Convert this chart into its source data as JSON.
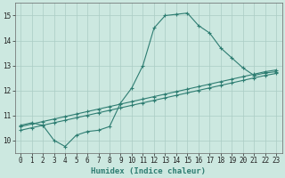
{
  "line1_x": [
    0,
    1,
    2,
    3,
    4,
    5,
    6,
    7,
    8,
    9,
    10,
    11,
    12,
    13,
    14,
    15,
    16,
    17,
    18,
    19,
    20,
    21,
    22,
    23
  ],
  "line1_y": [
    10.6,
    10.7,
    10.6,
    10.0,
    9.75,
    10.2,
    10.35,
    10.4,
    10.55,
    11.5,
    12.1,
    13.0,
    14.5,
    15.0,
    15.05,
    15.1,
    14.6,
    14.3,
    13.7,
    13.3,
    12.9,
    12.6,
    12.7,
    12.75
  ],
  "line2_x": [
    0,
    1,
    2,
    3,
    4,
    5,
    6,
    7,
    8,
    9,
    10,
    11,
    12,
    13,
    14,
    15,
    16,
    17,
    18,
    19,
    20,
    21,
    22,
    23
  ],
  "line2_y": [
    10.55,
    10.65,
    10.75,
    10.85,
    10.95,
    11.05,
    11.15,
    11.25,
    11.35,
    11.45,
    11.55,
    11.65,
    11.75,
    11.85,
    11.95,
    12.05,
    12.15,
    12.25,
    12.35,
    12.45,
    12.55,
    12.65,
    12.75,
    12.82
  ],
  "line3_x": [
    0,
    1,
    2,
    3,
    4,
    5,
    6,
    7,
    8,
    9,
    10,
    11,
    12,
    13,
    14,
    15,
    16,
    17,
    18,
    19,
    20,
    21,
    22,
    23
  ],
  "line3_y": [
    10.4,
    10.5,
    10.6,
    10.7,
    10.8,
    10.9,
    11.0,
    11.1,
    11.2,
    11.3,
    11.4,
    11.5,
    11.6,
    11.7,
    11.8,
    11.9,
    12.0,
    12.1,
    12.2,
    12.3,
    12.4,
    12.5,
    12.6,
    12.68
  ],
  "line_color": "#2e7d72",
  "bg_color": "#cce8e0",
  "grid_color": "#aaccc4",
  "xlabel": "Humidex (Indice chaleur)",
  "xlim": [
    -0.5,
    23.5
  ],
  "ylim": [
    9.5,
    15.5
  ],
  "xticks": [
    0,
    1,
    2,
    3,
    4,
    5,
    6,
    7,
    8,
    9,
    10,
    11,
    12,
    13,
    14,
    15,
    16,
    17,
    18,
    19,
    20,
    21,
    22,
    23
  ],
  "yticks": [
    10,
    11,
    12,
    13,
    14,
    15
  ],
  "label_fontsize": 6.5,
  "tick_fontsize": 5.5
}
